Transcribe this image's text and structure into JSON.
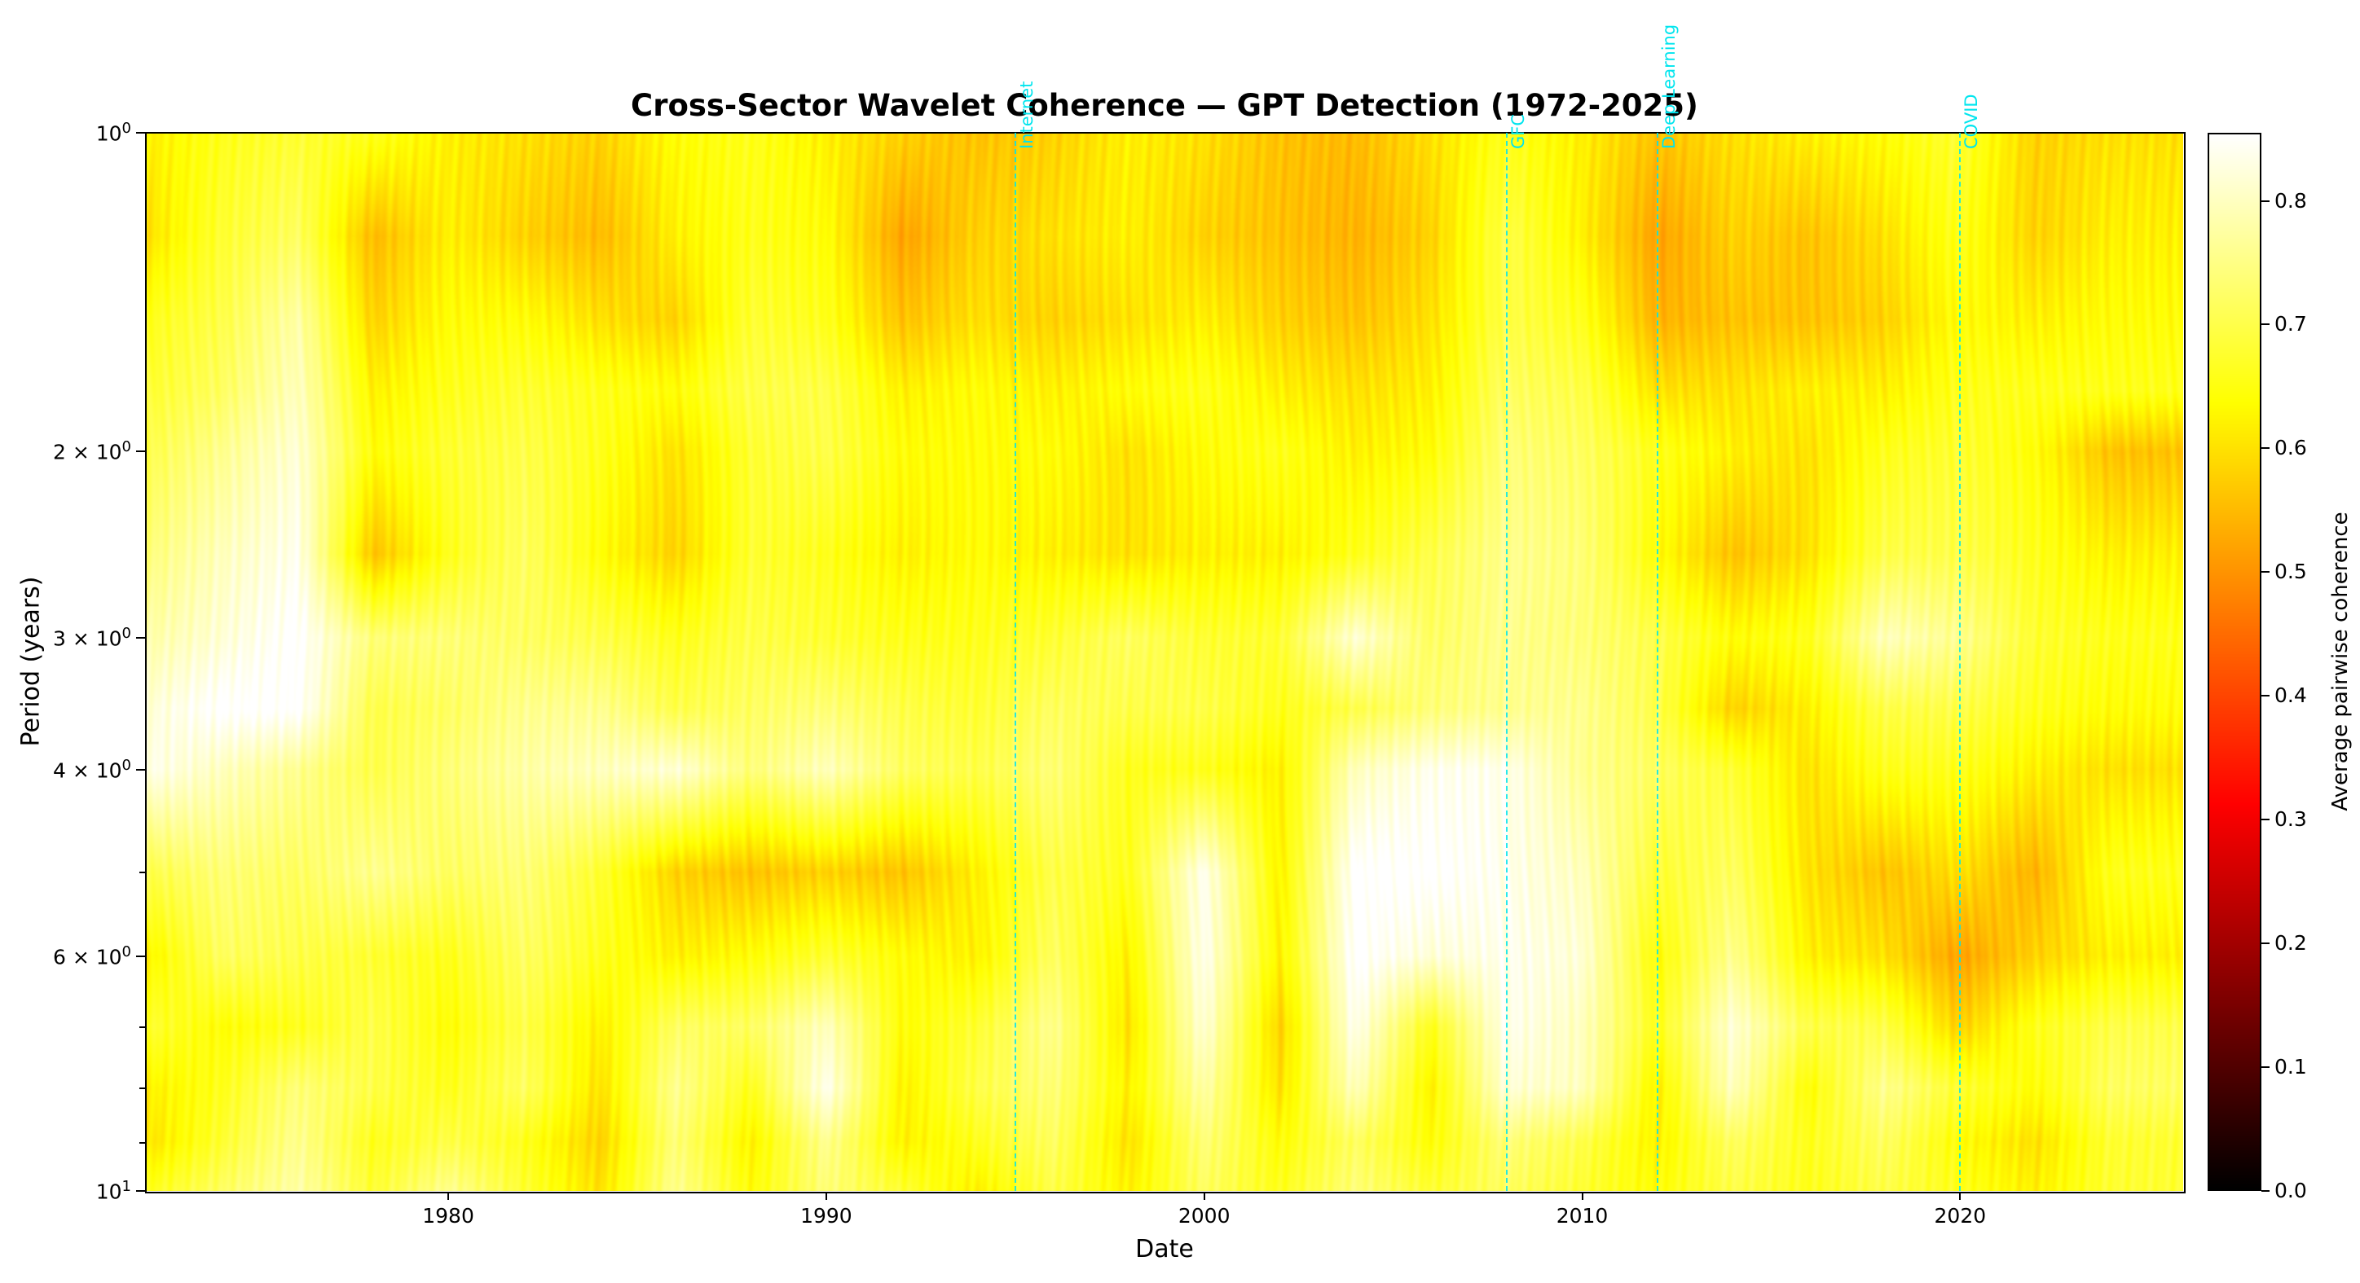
{
  "chart_data": {
    "type": "heatmap",
    "title": "Cross-Sector Wavelet Coherence — GPT Detection (1972-2025)",
    "xlabel": "Date",
    "ylabel": "Period (years)",
    "xlim": [
      1972.0,
      2025.9
    ],
    "ylim": [
      1,
      10
    ],
    "yscale": "log",
    "y_inverted": true,
    "x_ticks": [
      1980,
      1990,
      2000,
      2010,
      2020
    ],
    "x_tick_labels": [
      "1980",
      "1990",
      "2000",
      "2010",
      "2020"
    ],
    "y_ticks": [
      1,
      2,
      3,
      4,
      6,
      10
    ],
    "y_tick_labels": [
      {
        "mantissa": "",
        "base": "10",
        "exp": "0"
      },
      {
        "mantissa": "2 × ",
        "base": "10",
        "exp": "0"
      },
      {
        "mantissa": "3 × ",
        "base": "10",
        "exp": "0"
      },
      {
        "mantissa": "4 × ",
        "base": "10",
        "exp": "0"
      },
      {
        "mantissa": "6 × ",
        "base": "10",
        "exp": "0"
      },
      {
        "mantissa": "",
        "base": "10",
        "exp": "1"
      }
    ],
    "y_minor_ticks": [
      5,
      7,
      8,
      9
    ],
    "colormap": "hot",
    "colorbar": {
      "label": "Average pairwise coherence",
      "range": [
        0.0,
        0.855
      ],
      "ticks": [
        0.0,
        0.1,
        0.2,
        0.3,
        0.4,
        0.5,
        0.6,
        0.7,
        0.8
      ],
      "tick_labels": [
        "0.0",
        "0.1",
        "0.2",
        "0.3",
        "0.4",
        "0.5",
        "0.6",
        "0.7",
        "0.8"
      ]
    },
    "events": [
      {
        "year": 1995,
        "label": "Internet"
      },
      {
        "year": 2008,
        "label": "GFC"
      },
      {
        "year": 2012,
        "label": "Deep Learning"
      },
      {
        "year": 2020,
        "label": "COVID"
      }
    ],
    "event_color": "#00e5ee",
    "grid": false,
    "x": [
      1972,
      1974,
      1976,
      1978,
      1980,
      1982,
      1984,
      1986,
      1988,
      1990,
      1992,
      1994,
      1996,
      1998,
      2000,
      2002,
      2004,
      2006,
      2008,
      2010,
      2012,
      2014,
      2016,
      2018,
      2020,
      2022,
      2024
    ],
    "periods": [
      1.0,
      1.25,
      1.5,
      1.75,
      2.0,
      2.5,
      3.0,
      3.5,
      4.0,
      5.0,
      6.0,
      7.0,
      8.0,
      9.0,
      10.0
    ],
    "values": [
      [
        0.62,
        0.66,
        0.68,
        0.66,
        0.62,
        0.6,
        0.58,
        0.64,
        0.66,
        0.62,
        0.58,
        0.56,
        0.58,
        0.62,
        0.6,
        0.56,
        0.55,
        0.6,
        0.66,
        0.62,
        0.56,
        0.6,
        0.62,
        0.64,
        0.68,
        0.58,
        0.6
      ],
      [
        0.6,
        0.68,
        0.72,
        0.55,
        0.62,
        0.58,
        0.55,
        0.62,
        0.66,
        0.64,
        0.52,
        0.58,
        0.6,
        0.62,
        0.58,
        0.56,
        0.54,
        0.58,
        0.7,
        0.62,
        0.52,
        0.58,
        0.56,
        0.6,
        0.66,
        0.58,
        0.62
      ],
      [
        0.66,
        0.7,
        0.78,
        0.58,
        0.64,
        0.64,
        0.6,
        0.58,
        0.68,
        0.66,
        0.56,
        0.6,
        0.58,
        0.6,
        0.62,
        0.58,
        0.56,
        0.6,
        0.7,
        0.66,
        0.54,
        0.56,
        0.56,
        0.58,
        0.64,
        0.62,
        0.64
      ],
      [
        0.68,
        0.72,
        0.8,
        0.62,
        0.66,
        0.68,
        0.66,
        0.64,
        0.7,
        0.7,
        0.62,
        0.64,
        0.62,
        0.64,
        0.66,
        0.62,
        0.6,
        0.62,
        0.72,
        0.7,
        0.6,
        0.6,
        0.62,
        0.62,
        0.66,
        0.66,
        0.66
      ],
      [
        0.7,
        0.76,
        0.82,
        0.64,
        0.68,
        0.7,
        0.66,
        0.6,
        0.68,
        0.7,
        0.64,
        0.64,
        0.64,
        0.6,
        0.64,
        0.66,
        0.62,
        0.64,
        0.74,
        0.72,
        0.66,
        0.62,
        0.6,
        0.66,
        0.68,
        0.64,
        0.56
      ],
      [
        0.74,
        0.8,
        0.84,
        0.56,
        0.66,
        0.72,
        0.64,
        0.58,
        0.68,
        0.66,
        0.62,
        0.64,
        0.62,
        0.6,
        0.62,
        0.62,
        0.66,
        0.7,
        0.76,
        0.74,
        0.64,
        0.56,
        0.6,
        0.7,
        0.7,
        0.66,
        0.62
      ],
      [
        0.78,
        0.82,
        0.86,
        0.74,
        0.74,
        0.72,
        0.7,
        0.66,
        0.7,
        0.68,
        0.66,
        0.66,
        0.68,
        0.72,
        0.68,
        0.68,
        0.82,
        0.72,
        0.76,
        0.74,
        0.7,
        0.64,
        0.66,
        0.8,
        0.76,
        0.68,
        0.66
      ],
      [
        0.82,
        0.86,
        0.86,
        0.7,
        0.72,
        0.76,
        0.76,
        0.7,
        0.72,
        0.74,
        0.7,
        0.68,
        0.72,
        0.7,
        0.7,
        0.66,
        0.7,
        0.74,
        0.76,
        0.76,
        0.7,
        0.58,
        0.62,
        0.7,
        0.7,
        0.66,
        0.64
      ],
      [
        0.84,
        0.8,
        0.76,
        0.7,
        0.74,
        0.78,
        0.8,
        0.82,
        0.74,
        0.8,
        0.72,
        0.7,
        0.74,
        0.66,
        0.66,
        0.62,
        0.8,
        0.84,
        0.84,
        0.76,
        0.72,
        0.68,
        0.6,
        0.66,
        0.66,
        0.62,
        0.6
      ],
      [
        0.7,
        0.74,
        0.72,
        0.76,
        0.72,
        0.74,
        0.68,
        0.58,
        0.56,
        0.58,
        0.56,
        0.62,
        0.7,
        0.66,
        0.84,
        0.62,
        0.86,
        0.86,
        0.84,
        0.8,
        0.68,
        0.72,
        0.6,
        0.56,
        0.6,
        0.54,
        0.66
      ],
      [
        0.62,
        0.72,
        0.7,
        0.68,
        0.66,
        0.72,
        0.66,
        0.62,
        0.64,
        0.68,
        0.64,
        0.62,
        0.72,
        0.62,
        0.84,
        0.62,
        0.86,
        0.82,
        0.84,
        0.82,
        0.64,
        0.76,
        0.62,
        0.6,
        0.52,
        0.58,
        0.62
      ],
      [
        0.68,
        0.64,
        0.66,
        0.7,
        0.64,
        0.7,
        0.62,
        0.72,
        0.72,
        0.8,
        0.64,
        0.68,
        0.76,
        0.6,
        0.82,
        0.58,
        0.84,
        0.66,
        0.84,
        0.8,
        0.66,
        0.82,
        0.7,
        0.7,
        0.58,
        0.66,
        0.7
      ],
      [
        0.62,
        0.66,
        0.74,
        0.7,
        0.66,
        0.72,
        0.6,
        0.76,
        0.66,
        0.84,
        0.62,
        0.7,
        0.74,
        0.62,
        0.78,
        0.6,
        0.8,
        0.62,
        0.82,
        0.8,
        0.62,
        0.8,
        0.64,
        0.76,
        0.68,
        0.64,
        0.72
      ],
      [
        0.6,
        0.68,
        0.76,
        0.66,
        0.7,
        0.66,
        0.58,
        0.74,
        0.62,
        0.76,
        0.62,
        0.66,
        0.72,
        0.6,
        0.74,
        0.64,
        0.72,
        0.64,
        0.74,
        0.7,
        0.62,
        0.72,
        0.66,
        0.72,
        0.64,
        0.6,
        0.68
      ],
      [
        0.66,
        0.72,
        0.78,
        0.68,
        0.76,
        0.68,
        0.6,
        0.76,
        0.64,
        0.74,
        0.68,
        0.62,
        0.7,
        0.62,
        0.72,
        0.66,
        0.74,
        0.68,
        0.72,
        0.68,
        0.64,
        0.7,
        0.66,
        0.7,
        0.66,
        0.62,
        0.68
      ]
    ]
  }
}
